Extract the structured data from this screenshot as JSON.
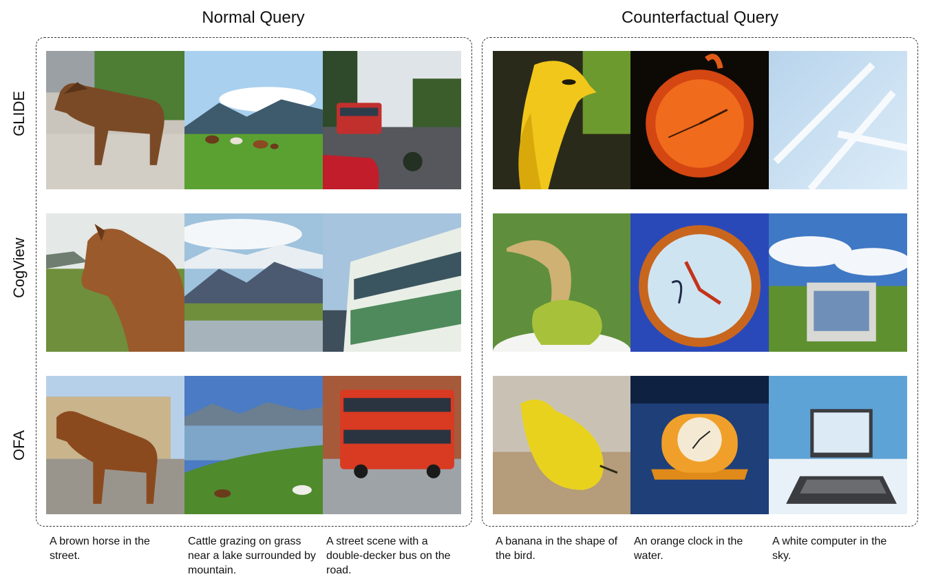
{
  "sections": {
    "normal_title": "Normal Query",
    "counterfactual_title": "Counterfactual Query"
  },
  "models": [
    "GLIDE",
    "CogView",
    "OFA"
  ],
  "captions": [
    "A brown horse in the street.",
    "Cattle grazing on grass near a lake surrounded by mountain.",
    "A street scene with a double-decker bus on the road.",
    "A banana in the shape of the bird.",
    "An orange clock in the water.",
    "A white computer in the sky."
  ]
}
